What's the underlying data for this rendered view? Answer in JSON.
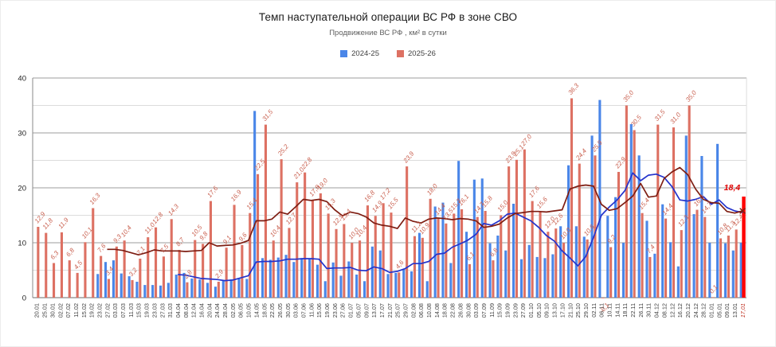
{
  "chart_data": {
    "type": "bar",
    "title": "Темп наступательной операции ВС РФ в зоне СВО",
    "subtitle": "Продвижение ВС РФ , км² в сутки",
    "ylabel": "",
    "xlabel": "",
    "ylim": [
      0,
      40
    ],
    "yticks_major": [
      0,
      10,
      20,
      30,
      40
    ],
    "yticks_minor": [
      5,
      15,
      25,
      35
    ],
    "grid": true,
    "legend_position": "top",
    "categories": [
      "20.01",
      "25.01",
      "30.01",
      "02.02",
      "07.02",
      "11.02",
      "15.02",
      "19.02",
      "23.02",
      "27.02",
      "03.03",
      "07.03",
      "11.03",
      "15.03",
      "19.03",
      "23.03",
      "27.03",
      "31.03",
      "04.04",
      "08.04",
      "12.04",
      "16.04",
      "20.04",
      "24.04",
      "28.04",
      "02.05",
      "06.05",
      "10.05",
      "14.05",
      "18.05",
      "22.05",
      "26.05",
      "30.05",
      "03.06",
      "07.06",
      "11.06",
      "15.06",
      "19.06",
      "23.06",
      "27.06",
      "01.07",
      "05.07",
      "09.07",
      "13.07",
      "17.07",
      "21.07",
      "25.07",
      "29.07",
      "02.08",
      "06.08",
      "10.08",
      "14.08",
      "18.08",
      "22.08",
      "26.08",
      "30.08",
      "03.09",
      "07.09",
      "11.09",
      "15.09",
      "19.09",
      "23.09",
      "27.09",
      "01.10",
      "05.10",
      "09.10",
      "13.10",
      "17.10",
      "21.10",
      "25.10",
      "29.10",
      "02.11",
      "06.11",
      "10.11",
      "14.11",
      "18.11",
      "22.11",
      "26.11",
      "30.11",
      "04.12",
      "08.12",
      "12.12",
      "16.12",
      "20.12",
      "24.12",
      "28.12",
      "01.01",
      "05.01",
      "09.01",
      "13.01",
      "17,01"
    ],
    "series": [
      {
        "name": "2024-25",
        "color": "#4a86e8",
        "values": [
          null,
          null,
          null,
          null,
          null,
          null,
          null,
          null,
          4.3,
          6.5,
          6.8,
          4.4,
          3.9,
          2.9,
          2.3,
          2.3,
          2.2,
          2.7,
          4.2,
          4.5,
          3.5,
          3.3,
          2.7,
          2.0,
          3.2,
          3.3,
          3.5,
          3.4,
          34.0,
          7.2,
          6.9,
          7.3,
          7.8,
          6.5,
          7.2,
          7.0,
          6.0,
          3.0,
          6.4,
          4.0,
          6.6,
          4.2,
          3.0,
          9.3,
          8.6,
          4.3,
          4.5,
          5.2,
          4.8,
          11.8,
          3.0,
          16.6,
          17.3,
          6.3,
          24.9,
          12.0,
          21.5,
          21.7,
          9.9,
          11.3,
          8.6,
          17.1,
          7.0,
          9.6,
          7.4,
          7.2,
          7.9,
          13.0,
          24.1,
          13.0,
          11.1,
          29.5,
          36.0,
          14.9,
          18.3,
          10.0,
          31.6,
          25.9,
          14.0,
          8.0,
          17.0,
          10.1,
          5.7,
          29.5,
          15.2,
          25.8,
          10.0,
          28.0,
          9.9,
          8.6,
          10.0
        ]
      },
      {
        "name": "2025-26",
        "color": "#dd7163",
        "values": [
          12.9,
          11.8,
          6.3,
          11.9,
          6.8,
          4.5,
          10.1,
          16.3,
          7.6,
          3.4,
          9.3,
          10.4,
          3.2,
          7.1,
          11.0,
          12.8,
          7.5,
          14.3,
          8.7,
          2.8,
          10.5,
          9.8,
          17.6,
          2.9,
          9.1,
          16.9,
          9.6,
          15.4,
          22.5,
          31.5,
          10.4,
          25.2,
          12.7,
          21.0,
          22.8,
          17.8,
          19.0,
          15.3,
          12.5,
          13.4,
          10.0,
          10.4,
          16.8,
          14.9,
          17.2,
          15.5,
          4.6,
          23.9,
          11.2,
          10.9,
          18.0,
          14.4,
          13.5,
          15.3,
          16.1,
          6.1,
          14.7,
          15.8,
          6.8,
          15.0,
          23.9,
          25.1,
          27.0,
          17.6,
          15.6,
          12.0,
          12.6,
          10.0,
          36.3,
          24.4,
          10.6,
          25.9,
          -0.1,
          9.2,
          22.9,
          35.0,
          30.5,
          15.4,
          7.4,
          31.5,
          14.4,
          31.0,
          12.3,
          35.0,
          16.0,
          14.7,
          0.1,
          10.8,
          11.3,
          12.4,
          18.4
        ]
      }
    ],
    "trend_lines": [
      {
        "name": "ma-2024-25",
        "color": "#2433cc",
        "values": [
          null,
          null,
          null,
          null,
          null,
          null,
          null,
          null,
          null,
          null,
          null,
          null,
          null,
          null,
          null,
          null,
          null,
          null,
          4.2,
          4.1,
          3.8,
          3.5,
          3.4,
          3.3,
          3.1,
          3.2,
          3.6,
          4.0,
          6.5,
          6.6,
          6.6,
          6.7,
          7.0,
          7.0,
          7.1,
          7.1,
          7.0,
          5.3,
          5.4,
          5.4,
          5.5,
          5.0,
          4.9,
          5.6,
          5.3,
          4.6,
          4.8,
          5.3,
          6.2,
          6.2,
          6.6,
          7.9,
          8.1,
          9.2,
          9.8,
          10.5,
          11.5,
          13.5,
          13.2,
          14.0,
          15.2,
          15.4,
          14.7,
          14.0,
          12.8,
          11.3,
          10.3,
          8.5,
          7.2,
          5.8,
          7.5,
          11.0,
          15.0,
          16.5,
          17.8,
          19.5,
          22.7,
          21.3,
          22.3,
          22.5,
          21.9,
          20.2,
          17.8,
          17.6,
          17.9,
          18.4,
          17.0,
          17.8,
          16.4,
          15.8,
          15.5
        ]
      },
      {
        "name": "ma-2025-26",
        "color": "#7e1d12",
        "values": [
          null,
          null,
          null,
          null,
          null,
          null,
          null,
          null,
          null,
          8.8,
          8.8,
          8.6,
          8.2,
          7.8,
          8.2,
          8.7,
          8.5,
          8.5,
          8.5,
          8.4,
          8.5,
          8.6,
          10.0,
          9.4,
          9.5,
          9.6,
          9.9,
          10.4,
          14.0,
          14.0,
          14.3,
          15.6,
          15.2,
          16.5,
          17.9,
          17.7,
          17.9,
          17.5,
          16.0,
          14.9,
          15.6,
          15.3,
          14.7,
          13.6,
          13.2,
          13.0,
          12.6,
          14.5,
          13.9,
          13.6,
          14.3,
          14.5,
          14.4,
          14.2,
          14.4,
          14.3,
          14.0,
          12.8,
          13.0,
          13.4,
          14.5,
          15.3,
          15.5,
          15.7,
          15.7,
          15.6,
          15.8,
          16.0,
          19.8,
          20.3,
          20.5,
          20.3,
          17.0,
          15.9,
          16.2,
          17.3,
          18.5,
          20.8,
          18.3,
          18.5,
          21.7,
          22.9,
          23.7,
          22.4,
          19.8,
          17.9,
          17.3,
          17.2,
          15.7,
          15.4,
          15.8
        ]
      }
    ],
    "highlight": {
      "category": "17,01",
      "value_label": "18,4",
      "bar_color": "#ff0000",
      "label_color": "#e00000",
      "axis_label_color": "#c23a2b"
    },
    "label_color": "#c9604f",
    "axis_text_color": "#3d3d3d",
    "ytick_color": "#222222"
  }
}
